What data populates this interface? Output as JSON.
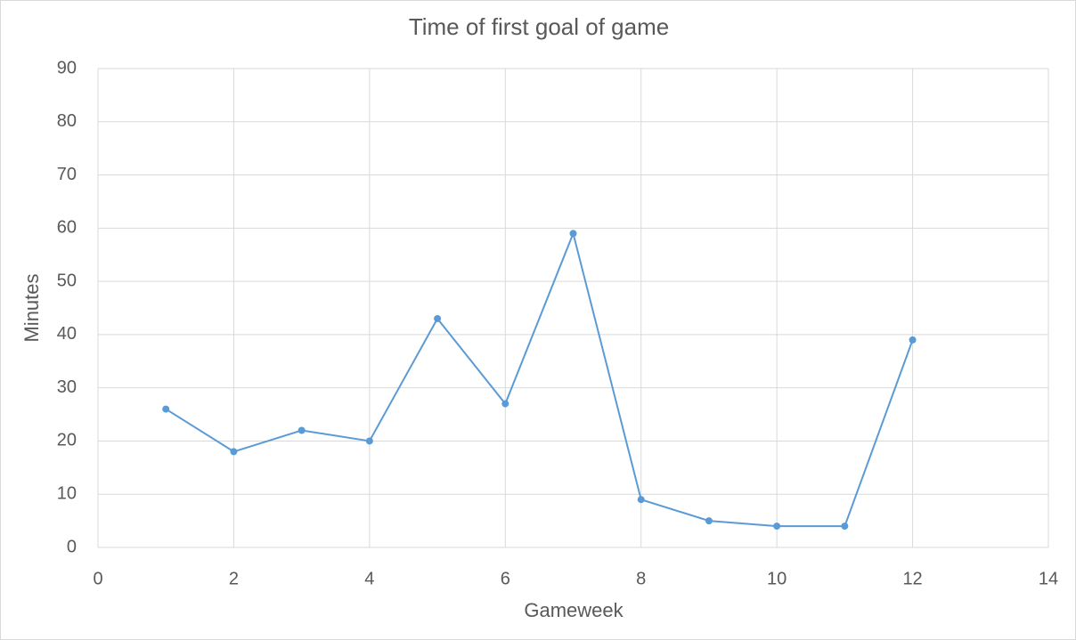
{
  "chart_data": {
    "type": "line",
    "title": "Time of first goal of game",
    "x_label": "Gameweek",
    "y_label": "Minutes",
    "x": [
      1,
      2,
      3,
      4,
      5,
      6,
      7,
      8,
      9,
      10,
      11,
      12
    ],
    "series": [
      {
        "name": "Minutes",
        "color": "#5b9bd5",
        "values": [
          26,
          18,
          22,
          20,
          43,
          27,
          59,
          9,
          5,
          4,
          4,
          39
        ]
      }
    ],
    "xlim": [
      0,
      14
    ],
    "xticks": [
      0,
      2,
      4,
      6,
      8,
      10,
      12,
      14
    ],
    "ylim": [
      0,
      90
    ],
    "yticks": [
      0,
      10,
      20,
      30,
      40,
      50,
      60,
      70,
      80,
      90
    ],
    "grid": true
  }
}
